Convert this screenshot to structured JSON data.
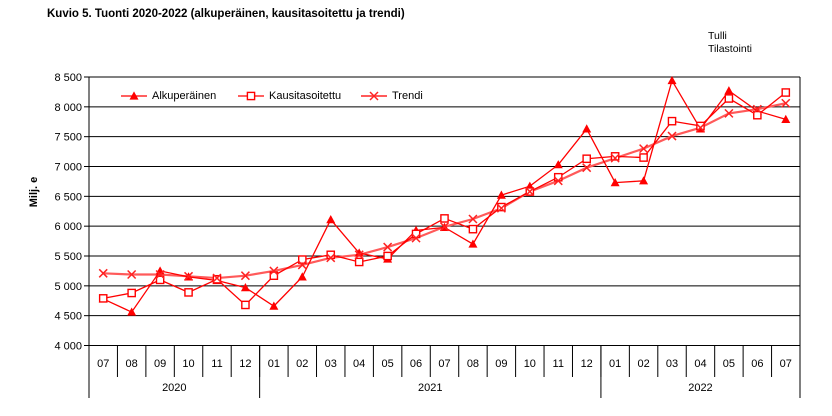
{
  "watermark": {
    "line1": "Tulli",
    "line2": "Tilastointi"
  },
  "chart_data": {
    "type": "line",
    "title": "Kuvio 5. Tuonti 2020-2022 (alkuperäinen, kausitasoitettu ja trendi)",
    "ylabel": "Milj. e",
    "ylim": [
      4000,
      8500
    ],
    "ytick_step": 500,
    "yticks": [
      4000,
      4500,
      5000,
      5500,
      6000,
      6500,
      7000,
      7500,
      8000,
      8500
    ],
    "ytick_labels": [
      "4 000",
      "4 500",
      "5 000",
      "5 500",
      "6 000",
      "6 500",
      "7 000",
      "7 500",
      "8 000",
      "8 500"
    ],
    "grid": true,
    "legend_position": "top-left-inside",
    "months": [
      "07",
      "08",
      "09",
      "10",
      "11",
      "12",
      "01",
      "02",
      "03",
      "04",
      "05",
      "06",
      "07",
      "08",
      "09",
      "10",
      "11",
      "12",
      "01",
      "02",
      "03",
      "04",
      "05",
      "06",
      "07"
    ],
    "year_groups": [
      {
        "label": "2020",
        "count": 6
      },
      {
        "label": "2021",
        "count": 12
      },
      {
        "label": "2022",
        "count": 7
      }
    ],
    "series": [
      {
        "name": "Alkuperäinen",
        "marker": "triangle",
        "color": "#ff0000",
        "marker_color": "#ff0000",
        "values": [
          4780,
          4560,
          5250,
          5150,
          5090,
          4970,
          4660,
          5150,
          6110,
          5550,
          5450,
          5930,
          5980,
          5700,
          6520,
          6670,
          7030,
          7630,
          6730,
          6760,
          8440,
          7630,
          8270,
          7930,
          7790
        ]
      },
      {
        "name": "Kausitasoitettu",
        "marker": "square-open",
        "color": "#ff0000",
        "marker_color": "#ff0000",
        "values": [
          4790,
          4880,
          5100,
          4890,
          5110,
          4680,
          5170,
          5440,
          5520,
          5400,
          5500,
          5870,
          6130,
          5950,
          6320,
          6580,
          6820,
          7130,
          7170,
          7150,
          7760,
          7680,
          8140,
          7860,
          8240
        ]
      },
      {
        "name": "Trendi",
        "marker": "x",
        "color": "#ff5a5a",
        "marker_color": "#ff2222",
        "values": [
          5210,
          5190,
          5190,
          5160,
          5130,
          5170,
          5250,
          5350,
          5470,
          5520,
          5650,
          5800,
          5990,
          6120,
          6300,
          6580,
          6760,
          6980,
          7140,
          7300,
          7510,
          7650,
          7890,
          7960,
          8060
        ]
      }
    ]
  }
}
